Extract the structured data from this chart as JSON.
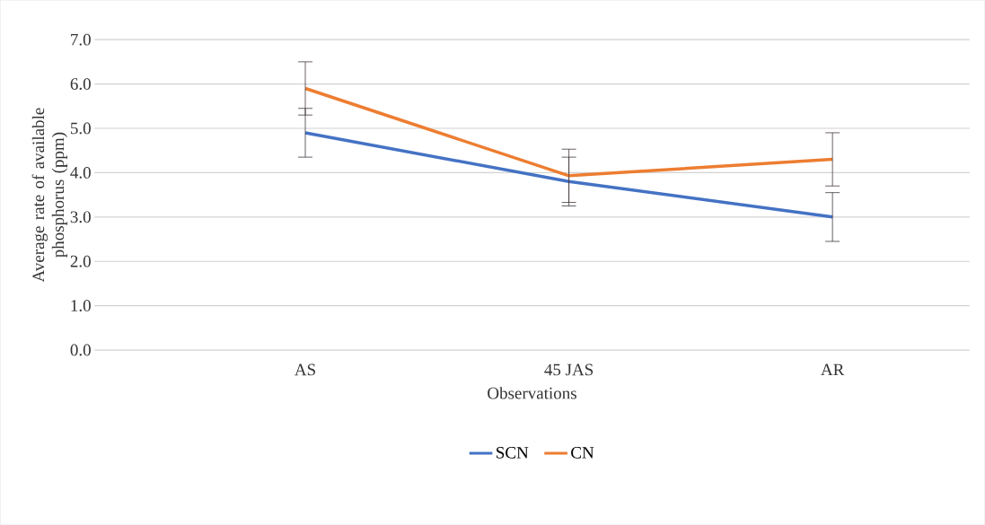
{
  "chart_data": {
    "type": "line",
    "xlabel": "Observations",
    "ylabel": "Average rate of available phosphorus (ppm)",
    "categories": [
      "AS",
      "45 JAS",
      "AR"
    ],
    "series": [
      {
        "name": "SCN",
        "color": "#4472c4",
        "values": [
          4.9,
          3.8,
          3.0
        ],
        "errors": [
          0.55,
          0.55,
          0.55
        ]
      },
      {
        "name": "CN",
        "color": "#ed7d31",
        "values": [
          5.9,
          3.93,
          4.3
        ],
        "errors": [
          0.6,
          0.6,
          0.6
        ]
      }
    ],
    "ylim": [
      0,
      7
    ],
    "yticks": [
      {
        "value": 0,
        "label": "0.0"
      },
      {
        "value": 1,
        "label": "1.0"
      },
      {
        "value": 2,
        "label": "2.0"
      },
      {
        "value": 3,
        "label": "3.0"
      },
      {
        "value": 4,
        "label": "4.0"
      },
      {
        "value": 5,
        "label": "5.0"
      },
      {
        "value": 6,
        "label": "6.0"
      },
      {
        "value": 7,
        "label": "7.0"
      }
    ],
    "grid": "y",
    "legend": "bottom",
    "marker": "none",
    "line_style": "solid"
  }
}
